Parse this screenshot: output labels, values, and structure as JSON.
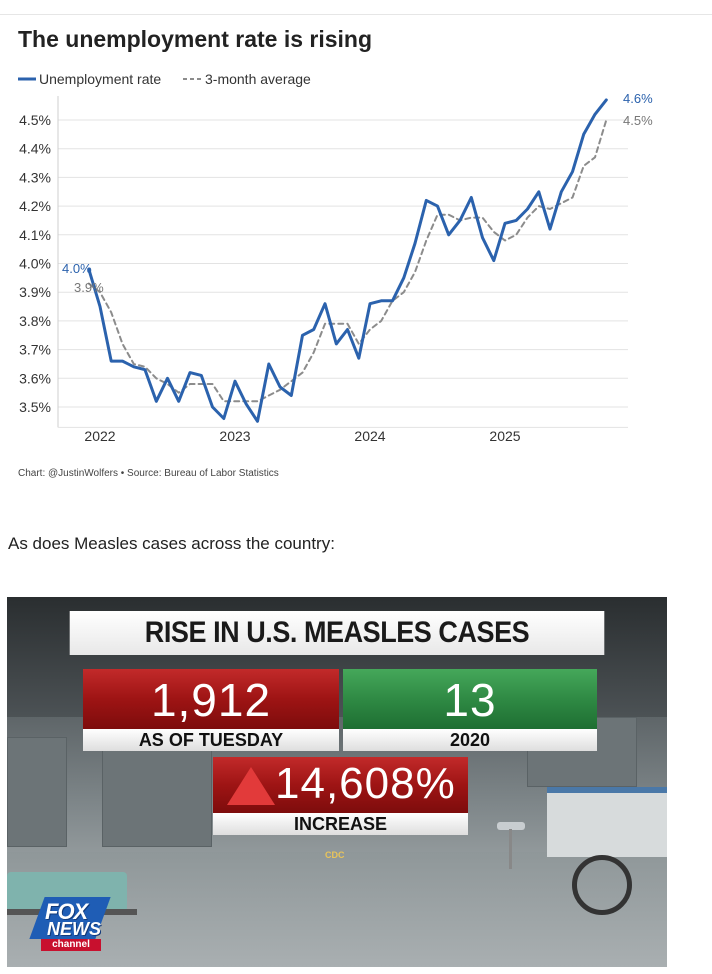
{
  "chart_data": {
    "type": "line",
    "title": "The unemployment rate is rising",
    "series": [
      {
        "name": "Unemployment rate",
        "color": "#2b62ad",
        "style": "solid",
        "points": [
          [
            2021.917,
            3.98
          ],
          [
            2022.0,
            3.85
          ],
          [
            2022.083,
            3.66
          ],
          [
            2022.167,
            3.66
          ],
          [
            2022.25,
            3.64
          ],
          [
            2022.333,
            3.63
          ],
          [
            2022.417,
            3.52
          ],
          [
            2022.5,
            3.6
          ],
          [
            2022.583,
            3.52
          ],
          [
            2022.667,
            3.62
          ],
          [
            2022.75,
            3.61
          ],
          [
            2022.833,
            3.5
          ],
          [
            2022.917,
            3.46
          ],
          [
            2023.0,
            3.59
          ],
          [
            2023.083,
            3.51
          ],
          [
            2023.167,
            3.45
          ],
          [
            2023.25,
            3.65
          ],
          [
            2023.333,
            3.57
          ],
          [
            2023.417,
            3.54
          ],
          [
            2023.5,
            3.75
          ],
          [
            2023.583,
            3.77
          ],
          [
            2023.667,
            3.86
          ],
          [
            2023.75,
            3.72
          ],
          [
            2023.833,
            3.77
          ],
          [
            2023.917,
            3.67
          ],
          [
            2024.0,
            3.86
          ],
          [
            2024.083,
            3.87
          ],
          [
            2024.167,
            3.87
          ],
          [
            2024.25,
            3.95
          ],
          [
            2024.333,
            4.07
          ],
          [
            2024.417,
            4.22
          ],
          [
            2024.5,
            4.2
          ],
          [
            2024.583,
            4.1
          ],
          [
            2024.667,
            4.15
          ],
          [
            2024.75,
            4.23
          ],
          [
            2024.833,
            4.09
          ],
          [
            2024.917,
            4.01
          ],
          [
            2025.0,
            4.14
          ],
          [
            2025.083,
            4.15
          ],
          [
            2025.167,
            4.19
          ],
          [
            2025.25,
            4.25
          ],
          [
            2025.333,
            4.12
          ],
          [
            2025.417,
            4.25
          ],
          [
            2025.5,
            4.32
          ],
          [
            2025.583,
            4.45
          ],
          [
            2025.667,
            4.52
          ],
          [
            2025.75,
            4.57
          ]
        ]
      },
      {
        "name": "3-month average",
        "color": "#8c8c8c",
        "style": "dashed",
        "points": [
          [
            2021.917,
            3.93
          ],
          [
            2022.0,
            3.9
          ],
          [
            2022.083,
            3.83
          ],
          [
            2022.167,
            3.72
          ],
          [
            2022.25,
            3.65
          ],
          [
            2022.333,
            3.64
          ],
          [
            2022.417,
            3.6
          ],
          [
            2022.5,
            3.58
          ],
          [
            2022.583,
            3.55
          ],
          [
            2022.667,
            3.58
          ],
          [
            2022.75,
            3.58
          ],
          [
            2022.833,
            3.58
          ],
          [
            2022.917,
            3.52
          ],
          [
            2023.0,
            3.52
          ],
          [
            2023.083,
            3.52
          ],
          [
            2023.167,
            3.52
          ],
          [
            2023.25,
            3.54
          ],
          [
            2023.333,
            3.56
          ],
          [
            2023.417,
            3.59
          ],
          [
            2023.5,
            3.62
          ],
          [
            2023.583,
            3.69
          ],
          [
            2023.667,
            3.79
          ],
          [
            2023.75,
            3.79
          ],
          [
            2023.833,
            3.79
          ],
          [
            2023.917,
            3.72
          ],
          [
            2024.0,
            3.77
          ],
          [
            2024.083,
            3.8
          ],
          [
            2024.167,
            3.87
          ],
          [
            2024.25,
            3.9
          ],
          [
            2024.333,
            3.97
          ],
          [
            2024.417,
            4.08
          ],
          [
            2024.5,
            4.17
          ],
          [
            2024.583,
            4.17
          ],
          [
            2024.667,
            4.15
          ],
          [
            2024.75,
            4.16
          ],
          [
            2024.833,
            4.16
          ],
          [
            2024.917,
            4.11
          ],
          [
            2025.0,
            4.08
          ],
          [
            2025.083,
            4.1
          ],
          [
            2025.167,
            4.16
          ],
          [
            2025.25,
            4.2
          ],
          [
            2025.333,
            4.19
          ],
          [
            2025.417,
            4.21
          ],
          [
            2025.5,
            4.23
          ],
          [
            2025.583,
            4.34
          ],
          [
            2025.667,
            4.37
          ],
          [
            2025.75,
            4.5
          ]
        ]
      }
    ],
    "y_ticks": [
      "4.5%",
      "4.4%",
      "4.3%",
      "4.2%",
      "4.1%",
      "4.0%",
      "3.9%",
      "3.8%",
      "3.7%",
      "3.6%",
      "3.5%"
    ],
    "y_tick_values": [
      4.5,
      4.4,
      4.3,
      4.2,
      4.1,
      4.0,
      3.9,
      3.8,
      3.7,
      3.6,
      3.5
    ],
    "x_ticks": [
      "2022",
      "2023",
      "2024",
      "2025"
    ],
    "x_tick_values": [
      2022.0,
      2023.0,
      2024.0,
      2025.0
    ],
    "xlim": [
      2021.917,
      2025.917
    ],
    "ylim": [
      3.45,
      4.6
    ],
    "grid": true,
    "legend_position": "top-left",
    "annotations": {
      "start_rate": "4.0%",
      "start_avg": "3.9%",
      "end_rate": "4.6%",
      "end_avg": "4.5%"
    },
    "source": "Chart: @JustinWolfers • Source: Bureau of Labor Statistics"
  },
  "post": {
    "text": "As does Measles cases across the country:"
  },
  "graphic": {
    "title": "RISE IN U.S. MEASLES CASES",
    "current_value": "1,912",
    "current_label": "AS OF TUESDAY",
    "past_value": "13",
    "past_label": "2020",
    "increase_value": "14,608%",
    "increase_label": "INCREASE",
    "watermark": "CDC",
    "logo": {
      "fox": "FOX",
      "news": "NEWS",
      "channel": "channel"
    }
  }
}
